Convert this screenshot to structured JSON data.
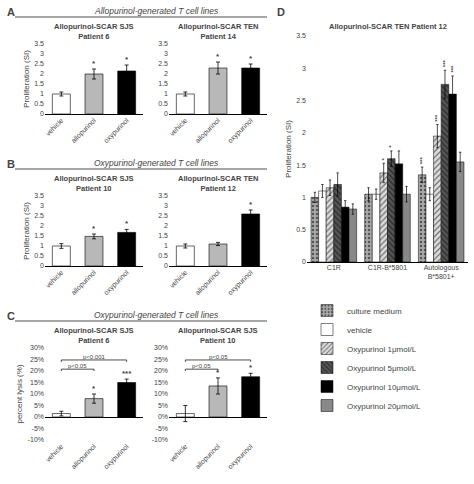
{
  "chart_data": [
    {
      "type": "bar",
      "title": "Allopurinol-SCAR SJS\nPatient 6",
      "subtitle": "Allopurinol-generated T cell lines",
      "annotations": [
        {
          "text": "A"
        }
      ],
      "ylabel": "Proliferation (SI)",
      "categories": [
        "vehicle",
        "allopurinol",
        "oxypurinol"
      ],
      "values": [
        1.0,
        2.0,
        2.15
      ],
      "errors": [
        0.1,
        0.25,
        0.3
      ],
      "significance": [
        null,
        "*",
        "*"
      ],
      "colors": [
        "white",
        "#b8b8b8",
        "black"
      ],
      "ylim": [
        0,
        3.5
      ],
      "yticks": [
        0,
        0.5,
        1,
        1.5,
        2,
        2.5,
        3,
        3.5
      ],
      "grid": false
    },
    {
      "type": "bar",
      "title": "Allopurinol-SCAR TEN\nPatient 14",
      "categories": [
        "vehicle",
        "allopurinol",
        "oxypurinol"
      ],
      "values": [
        1.0,
        2.3,
        2.3
      ],
      "errors": [
        0.1,
        0.3,
        0.2
      ],
      "significance": [
        null,
        "*",
        "*"
      ],
      "colors": [
        "white",
        "#b8b8b8",
        "black"
      ],
      "ylim": [
        0,
        3.5
      ],
      "yticks": [
        0,
        0.5,
        1,
        1.5,
        2,
        2.5,
        3,
        3.5
      ],
      "grid": false
    },
    {
      "type": "bar",
      "title": "Allopurinol-SCAR SJS\nPatient 10",
      "subtitle": "Oxypurinol-generated T cell lines",
      "annotations": [
        {
          "text": "B"
        }
      ],
      "ylabel": "Proliferation (SI)",
      "categories": [
        "vehicle",
        "allopurinol",
        "oxypurinol"
      ],
      "values": [
        1.0,
        1.48,
        1.68
      ],
      "errors": [
        0.12,
        0.12,
        0.15
      ],
      "significance": [
        null,
        "*",
        "*"
      ],
      "colors": [
        "white",
        "#b8b8b8",
        "black"
      ],
      "ylim": [
        0,
        3.5
      ],
      "yticks": [
        0,
        0.5,
        1,
        1.5,
        2,
        2.5,
        3,
        3.5
      ],
      "grid": false
    },
    {
      "type": "bar",
      "title": "Allopurinol-SCAR TEN\nPatient 12",
      "categories": [
        "vehicle",
        "allopurinol",
        "oxypurinol"
      ],
      "values": [
        1.0,
        1.1,
        2.6
      ],
      "errors": [
        0.1,
        0.08,
        0.2
      ],
      "significance": [
        null,
        null,
        "*"
      ],
      "colors": [
        "white",
        "#b8b8b8",
        "black"
      ],
      "ylim": [
        0,
        3.5
      ],
      "yticks": [
        0,
        0.5,
        1,
        1.5,
        2,
        2.5,
        3,
        3.5
      ],
      "grid": false
    },
    {
      "type": "bar",
      "title": "Allopurinol-SCAR SJS\nPatient 6",
      "subtitle": "Oxypurinol-generated T cell lines",
      "annotations": [
        {
          "text": "C"
        },
        {
          "text": "p<0.05",
          "from": "vehicle",
          "to": "allopurinol",
          "y": 20
        },
        {
          "text": "p<0.001",
          "from": "vehicle",
          "to": "oxypurinol",
          "y": 24
        }
      ],
      "ylabel": "percent lysis (%)",
      "categories": [
        "vehicle",
        "allopurinol",
        "oxypurinol"
      ],
      "values": [
        1.5,
        8.0,
        15.0
      ],
      "errors": [
        1.0,
        2.0,
        1.5
      ],
      "significance": [
        null,
        "*",
        "***"
      ],
      "colors": [
        "white",
        "#b8b8b8",
        "black"
      ],
      "ylim": [
        -10,
        30
      ],
      "yticks": [
        {
          "value": -10,
          "label": "-10%"
        },
        {
          "value": -5,
          "label": "-5%"
        },
        {
          "value": 0,
          "label": "0%"
        },
        {
          "value": 5,
          "label": "5%"
        },
        {
          "value": 10,
          "label": "10%"
        },
        {
          "value": 15,
          "label": "15%"
        },
        {
          "value": 20,
          "label": "20%"
        },
        {
          "value": 25,
          "label": "25%"
        },
        {
          "value": 30,
          "label": "30%"
        }
      ],
      "grid": false
    },
    {
      "type": "bar",
      "title": "Allopurinol-SCAR SJS\nPatient 10",
      "annotations": [
        {
          "text": "p<0.05",
          "from": "vehicle",
          "to": "allopurinol",
          "y": 20
        },
        {
          "text": "p<0.05",
          "from": "vehicle",
          "to": "oxypurinol",
          "y": 24
        }
      ],
      "categories": [
        "vehicle",
        "allopurinol",
        "oxypurinol"
      ],
      "values": [
        1.5,
        13.5,
        17.5
      ],
      "errors": [
        3.5,
        3.5,
        1.5
      ],
      "significance": [
        null,
        "*",
        "*"
      ],
      "colors": [
        "white",
        "#b8b8b8",
        "black"
      ],
      "ylim": [
        -10,
        30
      ],
      "yticks": [
        {
          "value": -10,
          "label": "-10%"
        },
        {
          "value": -5,
          "label": "-5%"
        },
        {
          "value": 0,
          "label": "0%"
        },
        {
          "value": 5,
          "label": "5%"
        },
        {
          "value": 10,
          "label": "10%"
        },
        {
          "value": 15,
          "label": "15%"
        },
        {
          "value": 20,
          "label": "20%"
        },
        {
          "value": 25,
          "label": "25%"
        },
        {
          "value": 30,
          "label": "30%"
        }
      ],
      "grid": false
    },
    {
      "type": "bar",
      "title": "Allopurinol-SCAR TEN Patient 12",
      "annotations": [
        {
          "text": "D"
        }
      ],
      "ylabel": "Proliferation (SI)",
      "categories": [
        "C1R",
        "C1R-B*5801",
        "Autologous\nB*5801+"
      ],
      "series": [
        {
          "name": "culture medium",
          "color": "#aaaaaa",
          "values": [
            1.0,
            1.05,
            1.35
          ],
          "errors": [
            0.08,
            0.1,
            0.12
          ],
          "significance": [
            null,
            null,
            "***"
          ]
        },
        {
          "name": "vehicle",
          "color": "white",
          "values": [
            1.1,
            1.05,
            1.05
          ],
          "errors": [
            0.1,
            0.08,
            0.1
          ],
          "significance": [
            null,
            null,
            null
          ]
        },
        {
          "name": "Oxypurinol 1μmol/L",
          "color": "#dddddd",
          "values": [
            1.15,
            1.38,
            1.95
          ],
          "errors": [
            0.12,
            0.15,
            0.18
          ],
          "significance": [
            null,
            "*",
            "***"
          ]
        },
        {
          "name": "Oxypurinol 5μmol/L",
          "color": "#555555",
          "values": [
            1.2,
            1.6,
            2.75
          ],
          "errors": [
            0.18,
            0.12,
            0.22
          ],
          "significance": [
            null,
            "*",
            "***"
          ]
        },
        {
          "name": "Oxypurinol 10μmol/L",
          "color": "black",
          "values": [
            0.85,
            1.52,
            2.6
          ],
          "errors": [
            0.1,
            0.2,
            0.28
          ],
          "significance": [
            null,
            null,
            "***"
          ]
        },
        {
          "name": "Oxypurinol 20μmol/L",
          "color": "#888888",
          "values": [
            0.82,
            1.05,
            1.55
          ],
          "errors": [
            0.08,
            0.12,
            0.15
          ],
          "significance": [
            null,
            null,
            null
          ]
        }
      ],
      "ylim": [
        0,
        3.5
      ],
      "yticks": [
        0,
        0.5,
        1,
        1.5,
        2,
        2.5,
        3,
        3.5
      ],
      "grid": false,
      "legend": "bottom"
    }
  ]
}
